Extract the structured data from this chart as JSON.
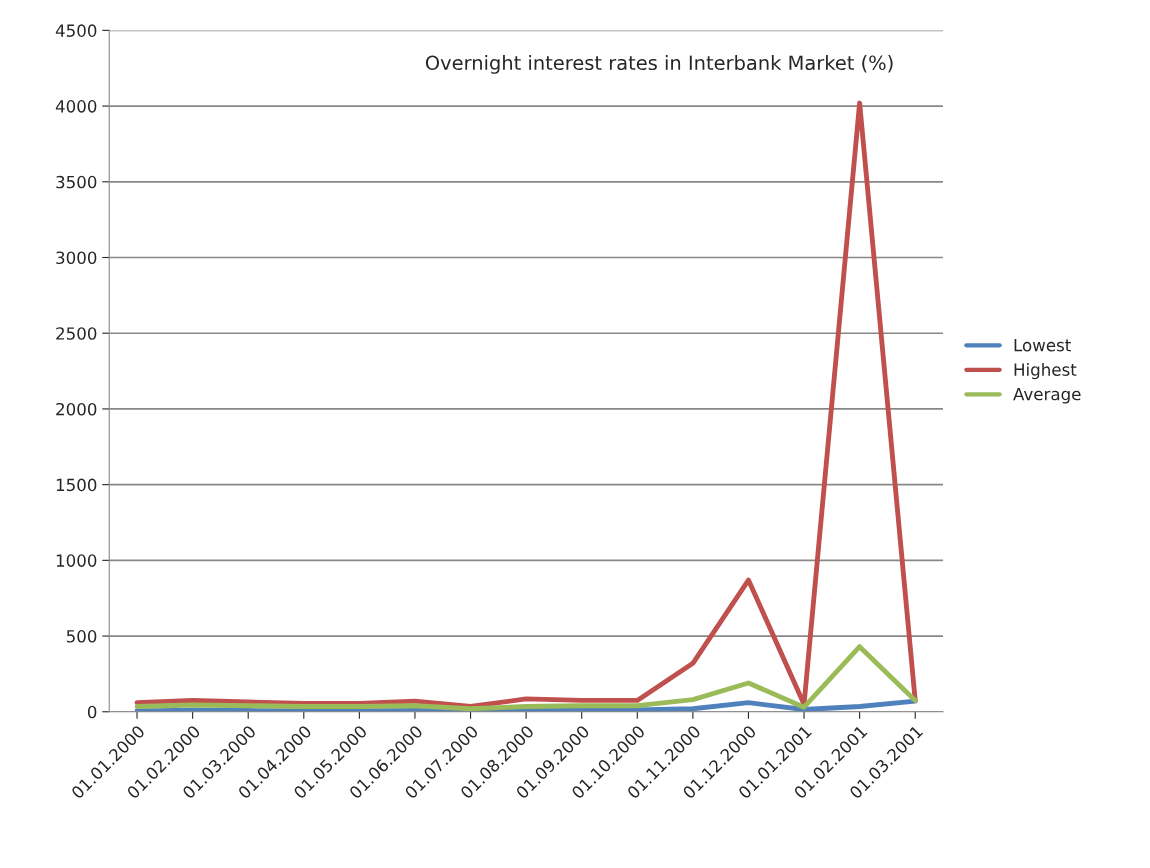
{
  "chart_data": {
    "type": "line",
    "title": "Overnight interest rates in Interbank Market (%)",
    "categories": [
      "01.01.2000",
      "01.02.2000",
      "01.03.2000",
      "01.04.2000",
      "01.05.2000",
      "01.06.2000",
      "01.07.2000",
      "01.08.2000",
      "01.09.2000",
      "01.10.2000",
      "01.11.2000",
      "01.12.2000",
      "01.01.2001",
      "01.02.2001",
      "01.03.2001"
    ],
    "series": [
      {
        "name": "Lowest",
        "color": "#4f81bd",
        "values": [
          5,
          10,
          8,
          5,
          5,
          8,
          3,
          10,
          12,
          12,
          20,
          60,
          15,
          35,
          70
        ]
      },
      {
        "name": "Highest",
        "color": "#c0504d",
        "values": [
          60,
          75,
          65,
          55,
          55,
          70,
          35,
          85,
          75,
          75,
          320,
          870,
          50,
          4020,
          75
        ]
      },
      {
        "name": "Average",
        "color": "#9bbb59",
        "values": [
          35,
          45,
          40,
          35,
          35,
          40,
          20,
          35,
          40,
          40,
          80,
          190,
          30,
          430,
          75
        ]
      }
    ],
    "ylim": [
      0,
      4500
    ],
    "yticks": [
      0,
      500,
      1000,
      1500,
      2000,
      2500,
      3000,
      3500,
      4000,
      4500
    ],
    "grid": "y",
    "legend": "right",
    "marker": "none",
    "line_style": "solid"
  }
}
